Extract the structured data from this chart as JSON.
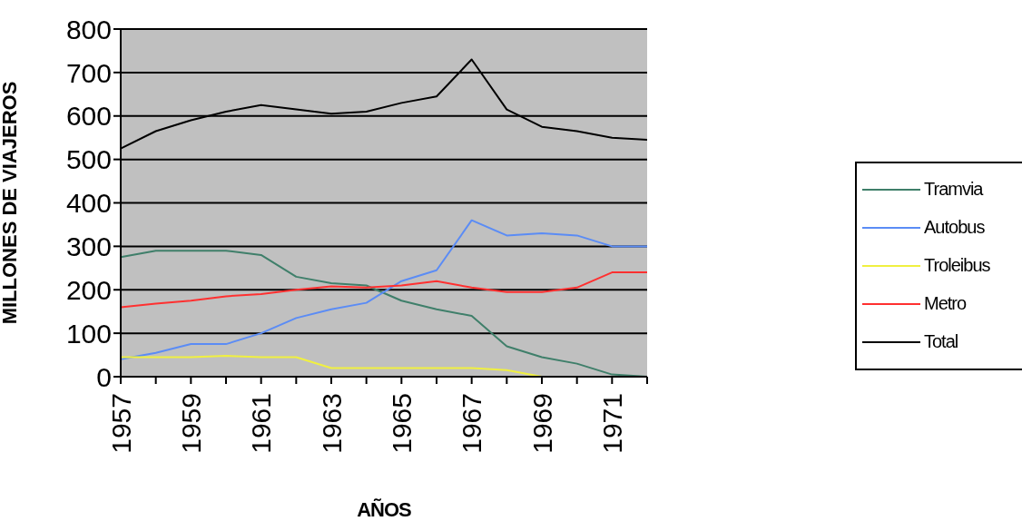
{
  "chart_data": {
    "type": "line",
    "xlabel": "AÑOS",
    "ylabel": "MILLONES DE VIAJEROS",
    "categories": [
      "1957",
      null,
      "1959",
      null,
      "1961",
      null,
      "1963",
      null,
      "1965",
      null,
      "1967",
      null,
      "1969",
      null,
      "1971",
      null
    ],
    "series": [
      {
        "name": "Tramvia",
        "color": "#3f7f6a",
        "values": [
          275,
          290,
          290,
          290,
          280,
          230,
          215,
          210,
          175,
          155,
          140,
          70,
          45,
          30,
          5,
          0
        ]
      },
      {
        "name": "Autobus",
        "color": "#5b8cf5",
        "values": [
          40,
          55,
          75,
          75,
          100,
          135,
          155,
          170,
          220,
          245,
          360,
          325,
          330,
          325,
          300,
          300
        ]
      },
      {
        "name": "Troleibus",
        "color": "#f0f040",
        "values": [
          45,
          45,
          45,
          48,
          45,
          45,
          20,
          20,
          20,
          20,
          20,
          15,
          0,
          null,
          null,
          null
        ]
      },
      {
        "name": "Metro",
        "color": "#ff3030",
        "values": [
          160,
          168,
          175,
          185,
          190,
          200,
          208,
          205,
          210,
          220,
          205,
          195,
          195,
          205,
          240,
          240
        ]
      },
      {
        "name": "Total",
        "color": "#000000",
        "values": [
          525,
          565,
          590,
          610,
          625,
          615,
          605,
          610,
          630,
          645,
          730,
          615,
          575,
          565,
          550,
          545
        ]
      }
    ],
    "ylim": [
      0,
      800
    ],
    "yticks": [
      0,
      100,
      200,
      300,
      400,
      500,
      600,
      700,
      800
    ],
    "grid": "y",
    "legend": "right",
    "marker": "none",
    "line_style": "solid"
  }
}
